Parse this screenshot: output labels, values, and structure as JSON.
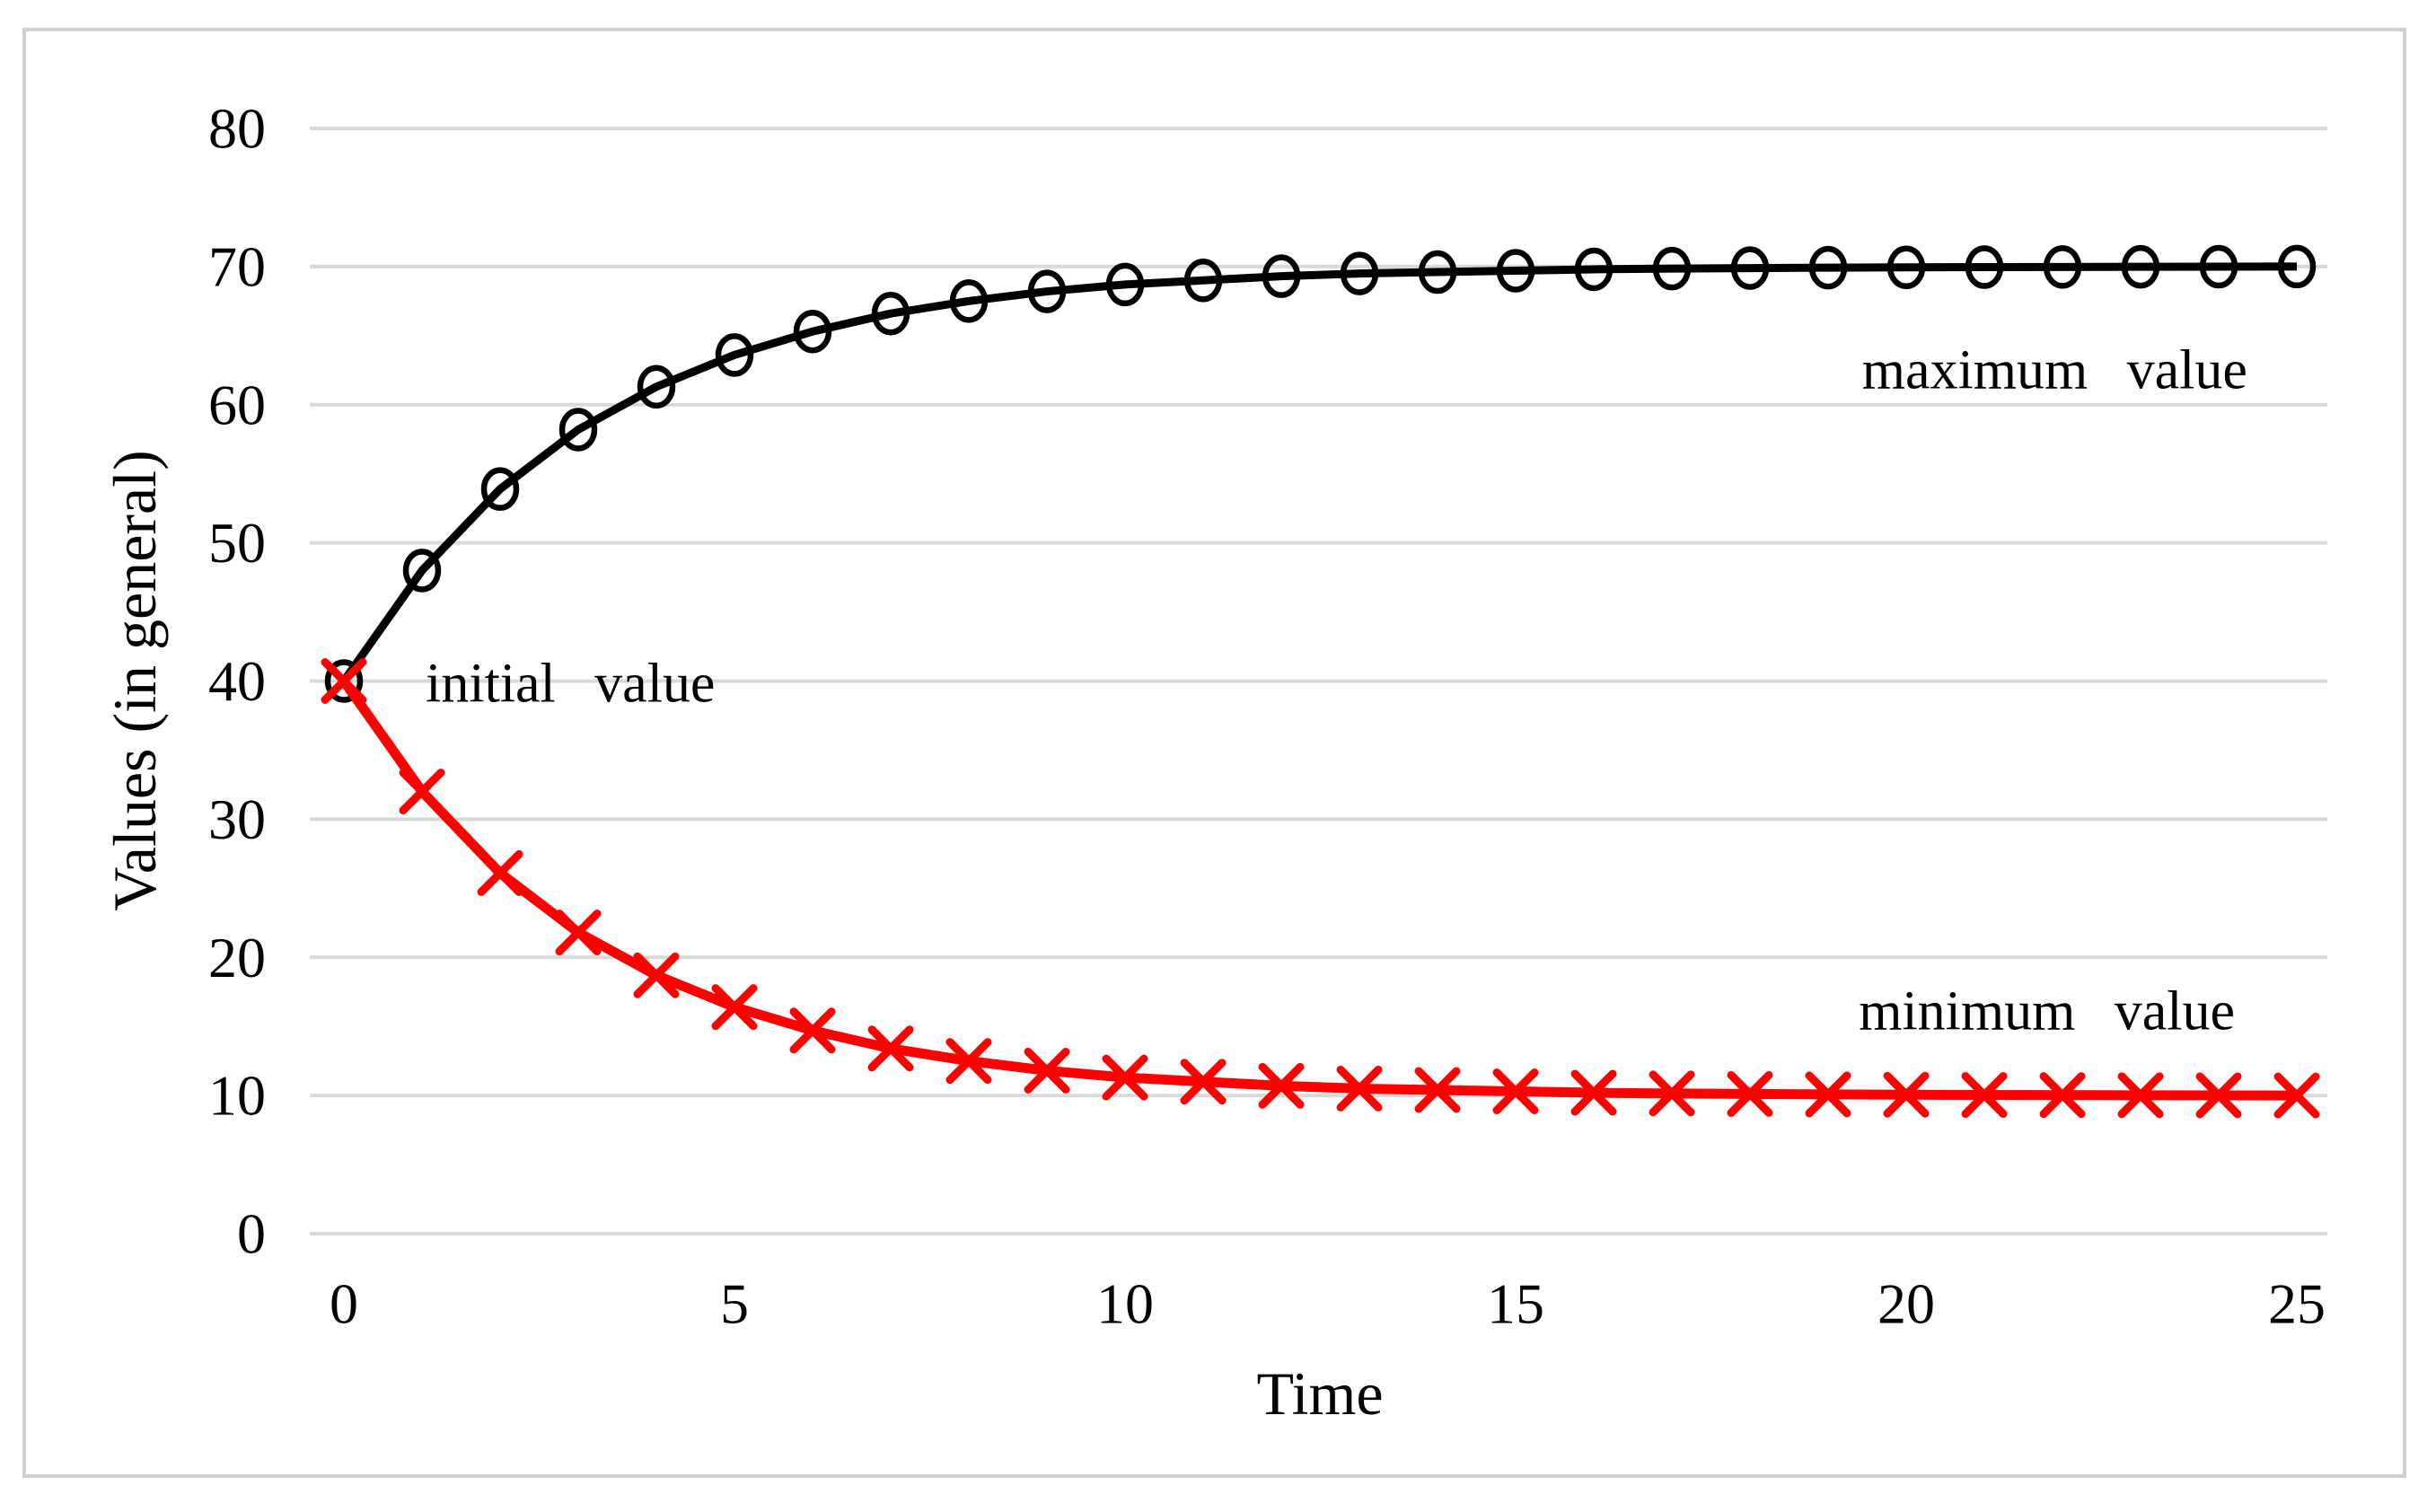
{
  "figure": {
    "background": "#ffffff",
    "border_color": "#d0d0d0"
  },
  "chart_data": {
    "type": "line",
    "title": "",
    "xlabel": "Time",
    "ylabel": "Values (in general)",
    "xlim": [
      0,
      25
    ],
    "ylim": [
      0,
      80
    ],
    "x_ticks": [
      0,
      5,
      10,
      15,
      20,
      25
    ],
    "y_ticks": [
      0,
      10,
      20,
      30,
      40,
      50,
      60,
      70,
      80
    ],
    "grid": "horizontal-only",
    "grid_color": "#d9d9d9",
    "legend_position": "none",
    "x": [
      0,
      1,
      2,
      3,
      4,
      5,
      6,
      7,
      8,
      9,
      10,
      11,
      12,
      13,
      14,
      15,
      16,
      17,
      18,
      19,
      20,
      21,
      22,
      23,
      24,
      25
    ],
    "series": [
      {
        "name": "maximum value",
        "color": "#000000",
        "marker": "open-circle",
        "values": [
          40,
          48,
          53.9,
          58.2,
          61.3,
          63.6,
          65.3,
          66.6,
          67.5,
          68.2,
          68.7,
          69.0,
          69.3,
          69.5,
          69.6,
          69.7,
          69.8,
          69.85,
          69.89,
          69.92,
          69.94,
          69.96,
          69.97,
          69.98,
          69.99,
          70.0
        ]
      },
      {
        "name": "minimum value",
        "color": "#ff0000",
        "marker": "x-cross",
        "values": [
          40,
          32,
          26.1,
          21.8,
          18.7,
          16.4,
          14.7,
          13.4,
          12.5,
          11.8,
          11.3,
          11.0,
          10.7,
          10.5,
          10.4,
          10.3,
          10.2,
          10.15,
          10.11,
          10.08,
          10.06,
          10.04,
          10.03,
          10.02,
          10.01,
          10.0
        ]
      }
    ],
    "annotations": [
      {
        "id": "initial-value",
        "text": "initial value",
        "x": 2.9,
        "y": 39.8
      },
      {
        "id": "maximum-value",
        "text": "maximum value",
        "x": 21.9,
        "y": 62.5
      },
      {
        "id": "minimum-value",
        "text": "minimum value",
        "x": 21.8,
        "y": 16.1
      }
    ]
  }
}
